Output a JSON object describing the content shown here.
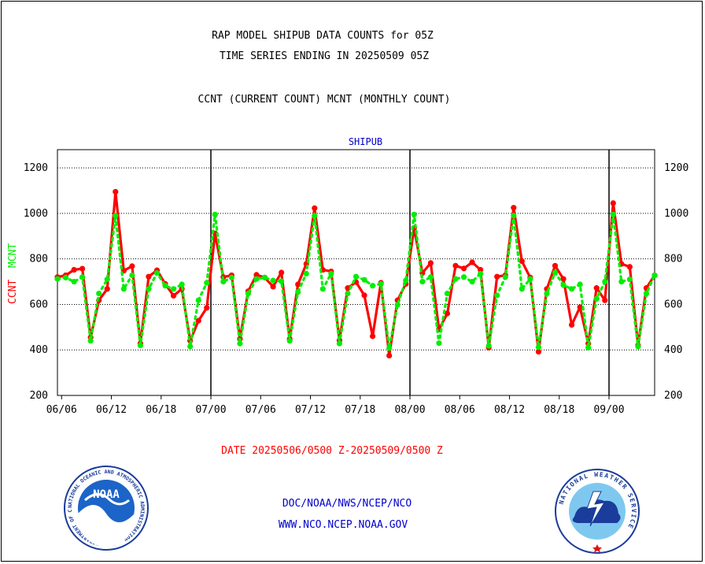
{
  "header": {
    "title_line1": "RAP MODEL SHIPUB DATA COUNTS for 05Z",
    "title_line2": "TIME SERIES ENDING IN 20250509 05Z",
    "subtitle": "CCNT (CURRENT COUNT) MCNT (MONTHLY COUNT)"
  },
  "footer": {
    "date_range": "DATE 20250506/0500 Z-20250509/0500 Z",
    "org": "DOC/NOAA/NWS/NCEP/NCO",
    "url": "WWW.NCO.NCEP.NOAA.GOV"
  },
  "logos": {
    "noaa": {
      "text": "NOAA",
      "ring_text": "NATIONAL OCEANIC AND ATMOSPHERIC ADMINISTRATION · U.S. DEPARTMENT OF COMMERCE",
      "icon": "noaa-logo"
    },
    "nws": {
      "ring_text": "NATIONAL WEATHER SERVICE",
      "icon": "nws-logo"
    }
  },
  "colors": {
    "ccnt": "#ff0000",
    "mcnt": "#00ee00",
    "panel_title": "#0000cc",
    "date_text": "#ff0000",
    "footer_text": "#0000cc"
  },
  "chart_data": {
    "type": "line",
    "title": "SHIPUB",
    "ylabel_left_ccnt": "CCNT",
    "ylabel_left_mcnt": "MCNT",
    "ylim": [
      200,
      1280
    ],
    "yticks": [
      200,
      400,
      600,
      800,
      1000,
      1200
    ],
    "ytick_labels": [
      "200",
      "400",
      "600",
      "800",
      "1000",
      "1200"
    ],
    "xlim": [
      0,
      72
    ],
    "xtick_labels": [
      "06/06",
      "06/12",
      "06/18",
      "07/00",
      "07/06",
      "07/12",
      "07/18",
      "08/00",
      "08/06",
      "08/12",
      "08/18",
      "09/00"
    ],
    "xtick_positions": [
      0.5,
      6.5,
      12.5,
      18.5,
      24.5,
      30.5,
      36.5,
      42.5,
      48.5,
      54.5,
      60.5,
      66.5
    ],
    "day_boundaries": [
      18.5,
      42.5,
      66.5
    ],
    "grid": "horizontal",
    "series": [
      {
        "name": "CCNT",
        "x": [
          0,
          1,
          2,
          3,
          4,
          5,
          6,
          7,
          8,
          9,
          10,
          11,
          12,
          13,
          14,
          15,
          16,
          17,
          18,
          19,
          20,
          21,
          22,
          23,
          24,
          25,
          26,
          27,
          28,
          29,
          30,
          31,
          32,
          33,
          34,
          35,
          36,
          37,
          38,
          39,
          40,
          41,
          42,
          43,
          44,
          45,
          46,
          47,
          48,
          49,
          50,
          51,
          52,
          53,
          54,
          55,
          56,
          57,
          58,
          59,
          60,
          61,
          62,
          63,
          64,
          65,
          66,
          67,
          68,
          69,
          70,
          71,
          72
        ],
        "values": [
          720,
          728,
          752,
          757,
          455,
          618,
          668,
          1095,
          748,
          768,
          428,
          722,
          750,
          690,
          638,
          668,
          440,
          528,
          585,
          912,
          720,
          728,
          448,
          658,
          730,
          718,
          678,
          740,
          448,
          688,
          778,
          1023,
          752,
          745,
          442,
          672,
          698,
          640,
          460,
          695,
          375,
          618,
          690,
          935,
          738,
          782,
          490,
          560,
          770,
          758,
          785,
          752,
          410,
          722,
          728,
          1025,
          790,
          718,
          392,
          668,
          770,
          712,
          510,
          588,
          428,
          672,
          618,
          1045,
          778,
          765,
          420,
          672,
          728
        ]
      },
      {
        "name": "MCNT",
        "x": [
          0,
          1,
          2,
          3,
          4,
          5,
          6,
          7,
          8,
          9,
          10,
          11,
          12,
          13,
          14,
          15,
          16,
          17,
          18,
          19,
          20,
          21,
          22,
          23,
          24,
          25,
          26,
          27,
          28,
          29,
          30,
          31,
          32,
          33,
          34,
          35,
          36,
          37,
          38,
          39,
          40,
          41,
          42,
          43,
          44,
          45,
          46,
          47,
          48,
          49,
          50,
          51,
          52,
          53,
          54,
          55,
          56,
          57,
          58,
          59,
          60,
          61,
          62,
          63,
          64,
          65,
          66,
          67,
          68,
          69,
          70,
          71,
          72
        ],
        "values": [
          712,
          718,
          700,
          720,
          440,
          648,
          710,
          990,
          668,
          728,
          420,
          668,
          738,
          682,
          668,
          688,
          415,
          618,
          695,
          995,
          700,
          718,
          428,
          648,
          712,
          718,
          705,
          702,
          440,
          655,
          735,
          990,
          668,
          735,
          428,
          648,
          722,
          708,
          682,
          690,
          408,
          598,
          705,
          995,
          700,
          720,
          430,
          648,
          712,
          720,
          700,
          735,
          418,
          640,
          720,
          990,
          668,
          712,
          412,
          648,
          740,
          685,
          668,
          688,
          410,
          625,
          700,
          995,
          700,
          710,
          415,
          648,
          728
        ]
      }
    ]
  }
}
